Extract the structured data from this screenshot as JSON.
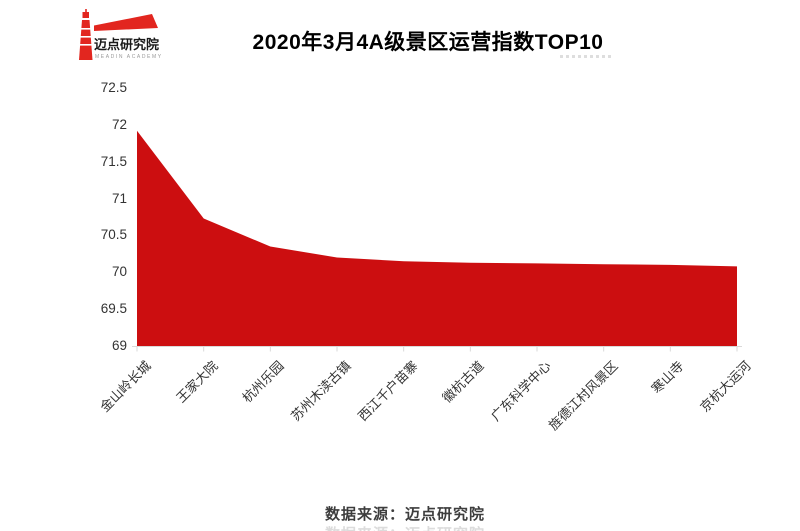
{
  "header": {
    "logo": {
      "brand": "迈点研究院",
      "brand_en": "MEADIN ACADEMY",
      "color": "#E2261F"
    },
    "title": "2020年3月4A级景区运营指数TOP10"
  },
  "chart_data": {
    "type": "area",
    "title": "2020年3月4A级景区运营指数TOP10",
    "categories": [
      "金山岭长城",
      "王家大院",
      "杭州乐园",
      "苏州木渎古镇",
      "西江千户苗寨",
      "徽杭古道",
      "广东科学中心",
      "旌德江村风景区",
      "寒山寺",
      "京杭大运河"
    ],
    "values": [
      71.92,
      70.73,
      70.35,
      70.2,
      70.15,
      70.13,
      70.12,
      70.11,
      70.1,
      70.08
    ],
    "xlabel": "",
    "ylabel": "",
    "ylim": [
      69,
      72.5
    ],
    "yticks": [
      72.5,
      72,
      71.5,
      71,
      70.5,
      70,
      69.5,
      69
    ],
    "grid": false,
    "legend_position": "none",
    "x_label_rotation_deg": 45,
    "area_color": "#CC0E10",
    "axis_line_color": "#D9D9D9",
    "tick_label_color": "#333333"
  },
  "footer": {
    "source_text": "数据来源：迈点研究院",
    "cropped_text": "数据来源：迈点研究院"
  }
}
